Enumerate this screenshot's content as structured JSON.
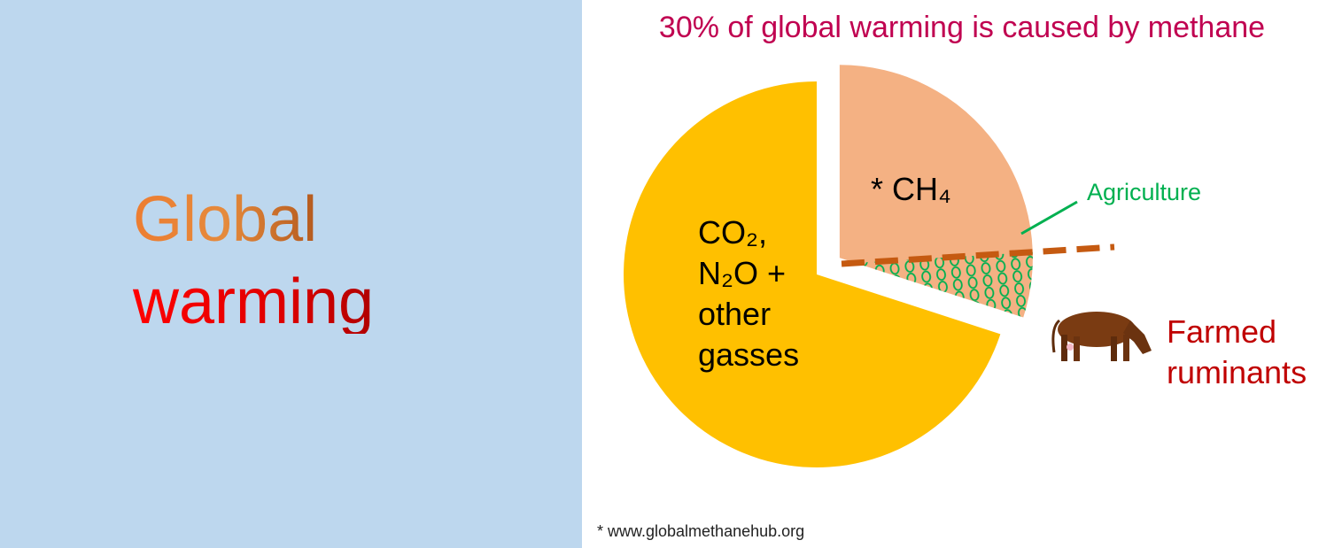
{
  "heading": {
    "line1": "Global",
    "line2": "warming"
  },
  "chart_data": {
    "type": "pie",
    "title": "30% of global warming is caused by methane",
    "categories": [
      "* CH₄",
      "CO₂, N₂O + other gasses"
    ],
    "values": [
      30,
      70
    ],
    "colors": [
      "#f4b183",
      "#ffc000"
    ]
  },
  "annotations": {
    "agriculture": "Agriculture",
    "ruminants": "Farmed ruminants"
  },
  "footnote": "* www.globalmethanehub.org"
}
